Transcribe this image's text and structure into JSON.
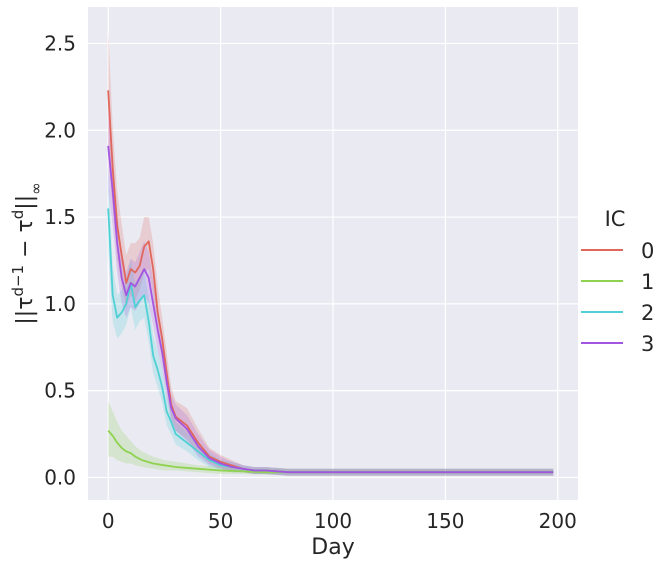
{
  "chart_data": {
    "type": "line",
    "xlabel": "Day",
    "ylabel": "||τ^(d−1) − τ^d||∞",
    "xlim": [
      -9,
      209
    ],
    "ylim": [
      -0.13,
      2.71
    ],
    "xticks": [
      0,
      50,
      100,
      150,
      200
    ],
    "yticks": [
      0.0,
      0.5,
      1.0,
      1.5,
      2.0,
      2.5
    ],
    "xtick_labels": [
      "0",
      "50",
      "100",
      "150",
      "200"
    ],
    "ytick_labels": [
      "0.0",
      "0.5",
      "1.0",
      "1.5",
      "2.0",
      "2.5"
    ],
    "grid": true,
    "legend": {
      "title": "IC",
      "position": "right"
    },
    "series": [
      {
        "name": "0",
        "color": "#e0675c",
        "x": [
          0,
          2,
          4,
          6,
          8,
          10,
          12,
          14,
          16,
          18,
          20,
          22,
          24,
          26,
          28,
          30,
          35,
          40,
          45,
          50,
          55,
          60,
          65,
          70,
          80,
          90,
          100,
          120,
          140,
          160,
          180,
          198
        ],
        "y": [
          2.23,
          1.78,
          1.45,
          1.28,
          1.12,
          1.2,
          1.18,
          1.22,
          1.33,
          1.36,
          1.2,
          0.95,
          0.8,
          0.6,
          0.42,
          0.35,
          0.3,
          0.2,
          0.12,
          0.09,
          0.07,
          0.05,
          0.04,
          0.04,
          0.03,
          0.03,
          0.03,
          0.03,
          0.03,
          0.03,
          0.03,
          0.03
        ],
        "lower": [
          1.85,
          1.55,
          1.25,
          1.1,
          0.98,
          1.05,
          1.02,
          1.08,
          1.18,
          1.2,
          1.05,
          0.82,
          0.68,
          0.5,
          0.34,
          0.27,
          0.22,
          0.14,
          0.08,
          0.05,
          0.04,
          0.03,
          0.02,
          0.02,
          0.01,
          0.01,
          0.01,
          0.01,
          0.01,
          0.01,
          0.01,
          0.01
        ],
        "upper": [
          2.58,
          2.02,
          1.65,
          1.46,
          1.28,
          1.35,
          1.35,
          1.38,
          1.5,
          1.5,
          1.35,
          1.1,
          0.92,
          0.72,
          0.52,
          0.44,
          0.4,
          0.28,
          0.17,
          0.13,
          0.1,
          0.07,
          0.06,
          0.06,
          0.05,
          0.05,
          0.05,
          0.05,
          0.05,
          0.05,
          0.05,
          0.05
        ]
      },
      {
        "name": "1",
        "color": "#8fd24f",
        "x": [
          0,
          2,
          4,
          6,
          8,
          10,
          12,
          15,
          20,
          25,
          30,
          40,
          50,
          60,
          70,
          80,
          90,
          100,
          120,
          140,
          160,
          180,
          198
        ],
        "y": [
          0.27,
          0.24,
          0.2,
          0.17,
          0.15,
          0.14,
          0.12,
          0.1,
          0.08,
          0.07,
          0.06,
          0.05,
          0.04,
          0.035,
          0.03,
          0.03,
          0.03,
          0.03,
          0.03,
          0.03,
          0.03,
          0.03,
          0.03
        ],
        "lower": [
          0.12,
          0.12,
          0.1,
          0.09,
          0.08,
          0.08,
          0.07,
          0.06,
          0.05,
          0.04,
          0.04,
          0.03,
          0.02,
          0.02,
          0.015,
          0.015,
          0.015,
          0.015,
          0.015,
          0.015,
          0.015,
          0.015,
          0.015
        ],
        "upper": [
          0.44,
          0.38,
          0.32,
          0.27,
          0.24,
          0.21,
          0.18,
          0.15,
          0.12,
          0.1,
          0.09,
          0.07,
          0.06,
          0.05,
          0.05,
          0.05,
          0.05,
          0.05,
          0.05,
          0.05,
          0.05,
          0.05,
          0.05
        ]
      },
      {
        "name": "2",
        "color": "#4fd0d4",
        "x": [
          0,
          2,
          4,
          6,
          8,
          10,
          12,
          14,
          16,
          18,
          20,
          22,
          24,
          26,
          28,
          30,
          35,
          40,
          45,
          50,
          55,
          60,
          65,
          70,
          80,
          90,
          100,
          120,
          140,
          160,
          180,
          198
        ],
        "y": [
          1.55,
          1.05,
          0.92,
          0.95,
          1.0,
          1.12,
          0.98,
          1.02,
          1.05,
          0.9,
          0.7,
          0.62,
          0.52,
          0.38,
          0.32,
          0.25,
          0.2,
          0.15,
          0.1,
          0.07,
          0.06,
          0.05,
          0.04,
          0.04,
          0.03,
          0.03,
          0.03,
          0.03,
          0.03,
          0.03,
          0.03,
          0.03
        ],
        "lower": [
          1.3,
          0.9,
          0.8,
          0.83,
          0.88,
          0.98,
          0.85,
          0.9,
          0.92,
          0.78,
          0.6,
          0.52,
          0.43,
          0.3,
          0.25,
          0.19,
          0.15,
          0.1,
          0.06,
          0.04,
          0.03,
          0.03,
          0.02,
          0.02,
          0.01,
          0.01,
          0.01,
          0.01,
          0.01,
          0.01,
          0.01,
          0.01
        ],
        "upper": [
          1.8,
          1.22,
          1.05,
          1.08,
          1.14,
          1.26,
          1.12,
          1.16,
          1.19,
          1.04,
          0.82,
          0.73,
          0.62,
          0.47,
          0.4,
          0.32,
          0.26,
          0.2,
          0.14,
          0.1,
          0.09,
          0.07,
          0.06,
          0.06,
          0.05,
          0.05,
          0.05,
          0.05,
          0.05,
          0.05,
          0.05,
          0.05
        ]
      },
      {
        "name": "3",
        "color": "#a455e0",
        "x": [
          0,
          2,
          4,
          6,
          8,
          10,
          12,
          14,
          16,
          18,
          20,
          22,
          24,
          26,
          28,
          30,
          35,
          40,
          45,
          50,
          55,
          60,
          65,
          70,
          80,
          90,
          100,
          120,
          140,
          160,
          180,
          198
        ],
        "y": [
          1.91,
          1.65,
          1.35,
          1.15,
          1.05,
          1.12,
          1.1,
          1.15,
          1.2,
          1.15,
          1.0,
          0.85,
          0.72,
          0.55,
          0.4,
          0.34,
          0.28,
          0.18,
          0.11,
          0.08,
          0.06,
          0.05,
          0.04,
          0.04,
          0.03,
          0.03,
          0.03,
          0.03,
          0.03,
          0.03,
          0.03,
          0.03
        ],
        "lower": [
          1.65,
          1.45,
          1.18,
          1.0,
          0.92,
          0.98,
          0.96,
          1.0,
          1.05,
          1.0,
          0.87,
          0.73,
          0.62,
          0.46,
          0.33,
          0.27,
          0.21,
          0.12,
          0.07,
          0.05,
          0.03,
          0.03,
          0.02,
          0.02,
          0.01,
          0.01,
          0.01,
          0.01,
          0.01,
          0.01,
          0.01,
          0.01
        ],
        "upper": [
          2.18,
          1.86,
          1.52,
          1.3,
          1.18,
          1.26,
          1.24,
          1.3,
          1.36,
          1.3,
          1.14,
          0.98,
          0.83,
          0.65,
          0.48,
          0.42,
          0.36,
          0.25,
          0.16,
          0.12,
          0.09,
          0.07,
          0.06,
          0.06,
          0.05,
          0.05,
          0.05,
          0.05,
          0.05,
          0.05,
          0.05,
          0.05
        ]
      }
    ]
  }
}
